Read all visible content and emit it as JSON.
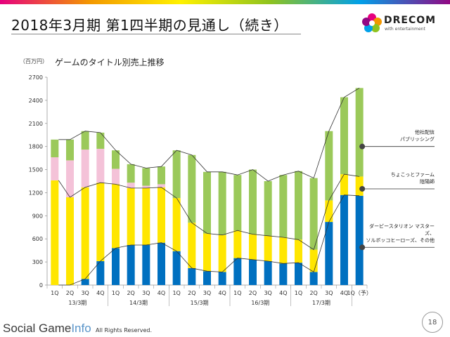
{
  "header": {
    "title": "2018年3月期 第1四半期の見通し（続き）",
    "logo_text": "DRECOM",
    "logo_sub": "with entertainment"
  },
  "unit_label": "（百万円）",
  "footer": {
    "watermark_main": "Social Game",
    "watermark_accent": "Info",
    "copyright": "All Rights Reserved.",
    "page_number": "18"
  },
  "colors": {
    "blue": "#0070c0",
    "yellow": "#ffe600",
    "pink": "#f4c2d8",
    "green": "#9bc95a"
  },
  "chart_data": {
    "type": "bar",
    "stacked": true,
    "title": "ゲームのタイトル別売上推移",
    "ylim": [
      0,
      2700
    ],
    "yticks": [
      0,
      300,
      600,
      900,
      1200,
      1500,
      1800,
      2100,
      2400,
      2700
    ],
    "categories": [
      "1Q",
      "2Q",
      "3Q",
      "4Q",
      "1Q",
      "2Q",
      "3Q",
      "4Q",
      "1Q",
      "2Q",
      "3Q",
      "4Q",
      "1Q",
      "2Q",
      "3Q",
      "4Q",
      "1Q",
      "2Q",
      "3Q",
      "4Q",
      "1Q（予）"
    ],
    "groups": [
      {
        "label": "13/3期",
        "start": 0,
        "end": 3
      },
      {
        "label": "14/3期",
        "start": 4,
        "end": 7
      },
      {
        "label": "15/3期",
        "start": 8,
        "end": 11
      },
      {
        "label": "16/3期",
        "start": 12,
        "end": 15
      },
      {
        "label": "17/3期",
        "start": 16,
        "end": 19
      }
    ],
    "series": [
      {
        "color": "#0070c0",
        "values": [
          0,
          0,
          80,
          310,
          480,
          520,
          520,
          550,
          440,
          220,
          180,
          170,
          350,
          330,
          310,
          280,
          290,
          170,
          820,
          1170,
          1160
        ]
      },
      {
        "color": "#ffe600",
        "values": [
          1360,
          1140,
          1190,
          1020,
          830,
          740,
          740,
          720,
          690,
          590,
          490,
          480,
          360,
          330,
          330,
          340,
          300,
          290,
          280,
          270,
          250
        ]
      },
      {
        "color": "#f4c2d8",
        "values": [
          300,
          480,
          490,
          440,
          200,
          70,
          30,
          40,
          0,
          0,
          0,
          0,
          0,
          0,
          0,
          0,
          0,
          0,
          0,
          0,
          0
        ]
      },
      {
        "color": "#9bc95a",
        "values": [
          230,
          270,
          240,
          210,
          240,
          240,
          230,
          230,
          620,
          880,
          800,
          820,
          720,
          840,
          710,
          810,
          890,
          930,
          900,
          1000,
          1150
        ]
      }
    ],
    "trend_lines": [
      {
        "name": "ダービースタリオン マスターズ、ソルボッコヒーローズ、その他",
        "tracks_series": 0
      },
      {
        "name": "ちょこっとファーム 陰陽師",
        "tracks_series": 1
      },
      {
        "name": "他社配信 パブリッシング",
        "tracks_series": 3
      }
    ],
    "legend_placement": "right",
    "grid": false
  }
}
